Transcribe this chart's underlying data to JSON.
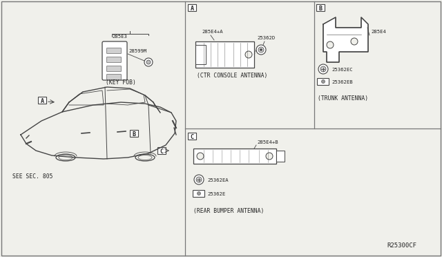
{
  "bg_color": "#f0f0eb",
  "line_color": "#444444",
  "text_color": "#222222",
  "border_color": "#777777",
  "diagram_code": "R25300CF",
  "keyfob_label": "285E3",
  "keyfob_sub1": "28599M",
  "keyfob_caption": "(KEY FOB)",
  "ctr_console_part1": "285E4+A",
  "ctr_console_part2": "25362D",
  "ctr_console_caption": "(CTR CONSOLE ANTENNA)",
  "trunk_part1": "285E4",
  "trunk_part2": "25362EC",
  "trunk_part3": "25362EB",
  "trunk_caption": "(TRUNK ANTENNA)",
  "rear_part1": "285E4+B",
  "rear_part2": "25362EA",
  "rear_part3": "25362E",
  "rear_caption": "(REAR BUMPER ANTENNA)",
  "see_sec": "SEE SEC. 805",
  "font_size_label": 6.0,
  "font_size_part": 5.2,
  "font_size_caption": 5.8,
  "font_size_code": 6.5
}
